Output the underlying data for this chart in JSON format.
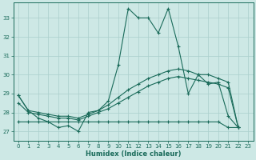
{
  "xlabel": "Humidex (Indice chaleur)",
  "xlim": [
    -0.5,
    23.5
  ],
  "ylim": [
    26.5,
    33.8
  ],
  "yticks": [
    27,
    28,
    29,
    30,
    31,
    32,
    33
  ],
  "xticks": [
    0,
    1,
    2,
    3,
    4,
    5,
    6,
    7,
    8,
    9,
    10,
    11,
    12,
    13,
    14,
    15,
    16,
    17,
    18,
    19,
    20,
    21,
    22,
    23
  ],
  "bg_color": "#cde8e5",
  "grid_color": "#aacfcc",
  "line_color": "#1a6b5a",
  "lines": [
    {
      "x": [
        0,
        1,
        2,
        3,
        4,
        5,
        6,
        7,
        8,
        9,
        10,
        11,
        12,
        13,
        14,
        15,
        16,
        17,
        18,
        19,
        20,
        21,
        22
      ],
      "y": [
        28.9,
        28.1,
        27.7,
        27.5,
        27.2,
        27.3,
        27.0,
        28.0,
        28.1,
        28.6,
        30.5,
        33.5,
        33.0,
        33.0,
        32.2,
        33.5,
        31.5,
        29.0,
        30.0,
        29.5,
        29.6,
        27.8,
        27.2
      ]
    },
    {
      "x": [
        0,
        1,
        2,
        3,
        4,
        5,
        6,
        7,
        8,
        9,
        10,
        11,
        12,
        13,
        14,
        15,
        16,
        17,
        18,
        19,
        20,
        21,
        22
      ],
      "y": [
        28.9,
        28.1,
        28.0,
        27.9,
        27.8,
        27.8,
        27.7,
        27.9,
        28.1,
        28.4,
        28.8,
        29.2,
        29.5,
        29.8,
        30.0,
        30.2,
        30.3,
        30.2,
        30.0,
        30.0,
        29.8,
        29.6,
        27.2
      ]
    },
    {
      "x": [
        0,
        1,
        2,
        3,
        4,
        5,
        6,
        7,
        8,
        9,
        10,
        11,
        12,
        13,
        14,
        15,
        16,
        17,
        18,
        19,
        20,
        21,
        22
      ],
      "y": [
        28.5,
        28.0,
        27.9,
        27.8,
        27.7,
        27.7,
        27.6,
        27.8,
        28.0,
        28.2,
        28.5,
        28.8,
        29.1,
        29.4,
        29.6,
        29.8,
        29.9,
        29.8,
        29.7,
        29.6,
        29.5,
        29.3,
        27.2
      ]
    },
    {
      "x": [
        0,
        1,
        2,
        3,
        4,
        5,
        6,
        7,
        8,
        9,
        10,
        11,
        12,
        13,
        14,
        15,
        16,
        17,
        18,
        19,
        20,
        21,
        22
      ],
      "y": [
        27.5,
        27.5,
        27.5,
        27.5,
        27.5,
        27.5,
        27.5,
        27.5,
        27.5,
        27.5,
        27.5,
        27.5,
        27.5,
        27.5,
        27.5,
        27.5,
        27.5,
        27.5,
        27.5,
        27.5,
        27.5,
        27.2,
        27.2
      ]
    }
  ],
  "title_fontsize": 7,
  "tick_fontsize": 5,
  "xlabel_fontsize": 6
}
